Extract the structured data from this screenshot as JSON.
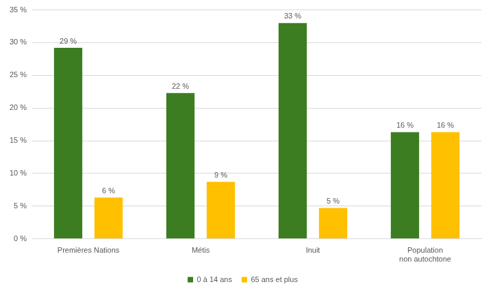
{
  "chart_data": {
    "type": "bar",
    "categories": [
      "Premières Nations",
      "Métis",
      "Inuit",
      "Population non autochtone"
    ],
    "series": [
      {
        "name": "0 à 14 ans",
        "color": "#3c7d22",
        "values": [
          29.2,
          22.3,
          33.0,
          16.3
        ],
        "value_labels": [
          "29 %",
          "22 %",
          "33 %",
          "16 %"
        ]
      },
      {
        "name": "65 ans et plus",
        "color": "#ffc000",
        "values": [
          6.3,
          8.7,
          4.7,
          16.3
        ],
        "value_labels": [
          "6 %",
          "9 %",
          "5 %",
          "16 %"
        ]
      }
    ],
    "ylim": [
      0,
      35
    ],
    "yticks": [
      {
        "value": 0,
        "label": "0 %"
      },
      {
        "value": 5,
        "label": "5 %"
      },
      {
        "value": 10,
        "label": "10 %"
      },
      {
        "value": 15,
        "label": "15 %"
      },
      {
        "value": 20,
        "label": "20 %"
      },
      {
        "value": 25,
        "label": "25 %"
      },
      {
        "value": 30,
        "label": "30 %"
      },
      {
        "value": 35,
        "label": "35 %"
      }
    ],
    "grid": true,
    "legend": "bottom",
    "data_labels": true
  }
}
